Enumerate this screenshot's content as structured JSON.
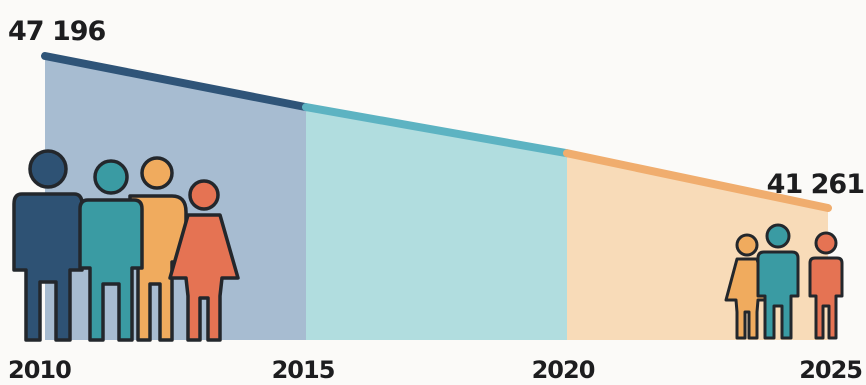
{
  "chart_data": {
    "type": "area",
    "title": "",
    "xlabel": "",
    "ylabel": "",
    "x": [
      2010,
      2015,
      2020,
      2025
    ],
    "values": [
      47196,
      45200,
      43400,
      41261
    ],
    "tick_labels": [
      "2010",
      "2015",
      "2020",
      "2025"
    ],
    "value_labels": {
      "start": "47 196",
      "end": "41 261"
    },
    "segments": [
      {
        "from": 2010,
        "to": 2015,
        "line_color": "#2f5478",
        "fill_color": "#a7bcd1"
      },
      {
        "from": 2015,
        "to": 2020,
        "line_color": "#5db3c2",
        "fill_color": "#b1dddf"
      },
      {
        "from": 2020,
        "to": 2025,
        "line_color": "#f0ad6e",
        "fill_color": "#f8dbb8"
      }
    ],
    "grid": false,
    "legend": "none"
  },
  "colors": {
    "navy": "#2e5274",
    "teal": "#3a9ba3",
    "orange": "#f0ab5e",
    "coral": "#e57353",
    "outline": "#23272c"
  },
  "icons": [
    "people-group-2010-icon",
    "people-group-2025-icon"
  ]
}
